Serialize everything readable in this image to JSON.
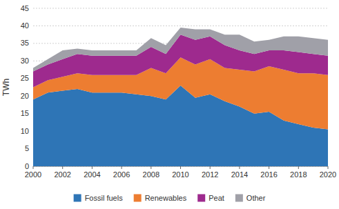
{
  "chart_data": {
    "type": "area",
    "stacked": true,
    "x": [
      2000,
      2001,
      2002,
      2003,
      2004,
      2005,
      2006,
      2007,
      2008,
      2009,
      2010,
      2011,
      2012,
      2013,
      2014,
      2015,
      2016,
      2017,
      2018,
      2019,
      2020
    ],
    "series": [
      {
        "name": "Fossil fuels",
        "color": "#2e75b6",
        "values": [
          19.0,
          21.0,
          21.5,
          22.0,
          21.0,
          21.0,
          21.0,
          20.5,
          20.0,
          19.0,
          23.0,
          19.5,
          20.5,
          18.5,
          17.0,
          15.0,
          15.5,
          13.0,
          12.0,
          11.0,
          10.5
        ]
      },
      {
        "name": "Renewables",
        "color": "#ed7d31",
        "values": [
          3.5,
          3.5,
          4.0,
          4.5,
          5.0,
          5.0,
          5.0,
          5.5,
          8.0,
          7.5,
          8.0,
          9.5,
          10.0,
          9.5,
          10.5,
          12.0,
          13.0,
          14.5,
          14.5,
          15.5,
          15.5
        ]
      },
      {
        "name": "Peat",
        "color": "#9e2a8e",
        "values": [
          4.5,
          4.5,
          5.0,
          5.5,
          5.5,
          5.5,
          5.5,
          5.5,
          6.0,
          5.5,
          6.5,
          7.0,
          6.5,
          6.5,
          5.5,
          5.0,
          4.5,
          5.5,
          6.0,
          5.5,
          5.5
        ]
      },
      {
        "name": "Other",
        "color": "#a0a0a8",
        "values": [
          1.0,
          1.5,
          2.5,
          1.5,
          1.5,
          1.5,
          1.5,
          1.5,
          2.5,
          2.5,
          2.0,
          3.0,
          2.0,
          3.0,
          4.5,
          3.5,
          3.0,
          4.0,
          4.5,
          4.5,
          4.5
        ]
      }
    ],
    "y_label": "TWh",
    "xlim": [
      2000,
      2020
    ],
    "xticks": [
      2000,
      2002,
      2004,
      2006,
      2008,
      2010,
      2012,
      2014,
      2016,
      2018,
      2020
    ],
    "ylim": [
      0,
      45
    ],
    "yticks": [
      0,
      5,
      10,
      15,
      20,
      25,
      30,
      35,
      40,
      45
    ],
    "grid": true,
    "legend": "bottom"
  }
}
